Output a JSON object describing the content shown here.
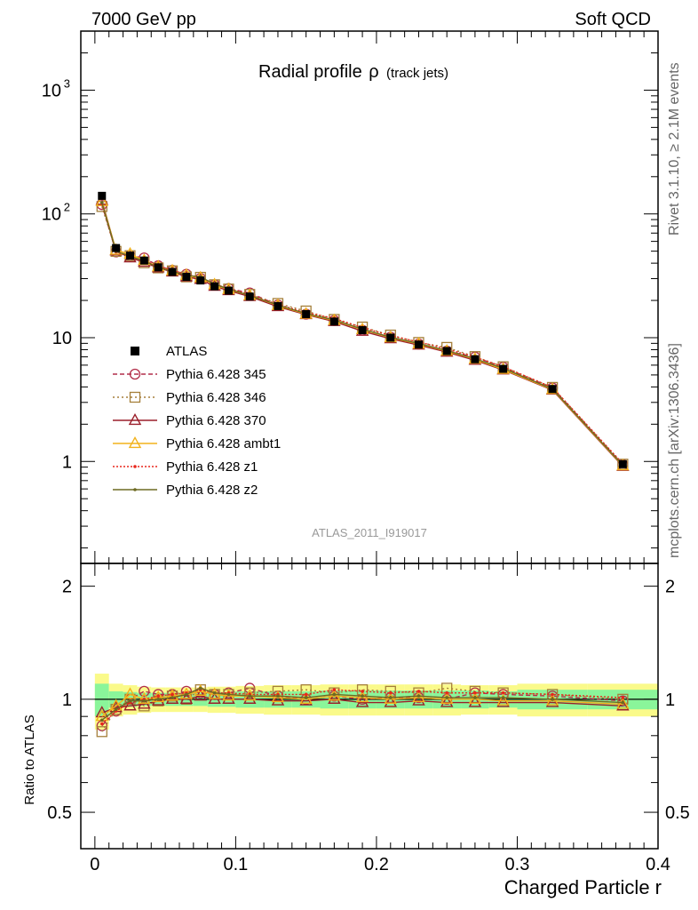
{
  "header": {
    "left": "7000 GeV pp",
    "right": "Soft QCD"
  },
  "side": {
    "rivet": "Rivet 3.1.10, ≥ 2.1M events",
    "url": "mcplots.cern.ch [arXiv:1306.3436]"
  },
  "chart_data": {
    "type": "line",
    "title_main": "Radial profile",
    "title_symbol": "ρ",
    "title_sub": "(track jets)",
    "analysis_id": "ATLAS_2011_I919017",
    "xlabel": "Charged Particle r",
    "ratio_ylabel": "Ratio to ATLAS",
    "xlim": [
      -0.01,
      0.4
    ],
    "ylim": [
      0.15,
      3000
    ],
    "yscale": "log",
    "ratio_ylim": [
      0.4,
      2.3
    ],
    "ratio_yscale": "log",
    "x_ticks": [
      {
        "v": 0,
        "label": "0"
      },
      {
        "v": 0.1,
        "label": "0.1"
      },
      {
        "v": 0.2,
        "label": "0.2"
      },
      {
        "v": 0.3,
        "label": "0.3"
      },
      {
        "v": 0.4,
        "label": "0.4"
      }
    ],
    "y_ticks": [
      {
        "v": 1,
        "label": "1"
      },
      {
        "v": 10,
        "label": "10"
      },
      {
        "v": 100,
        "label": "10",
        "sup": "2"
      },
      {
        "v": 1000,
        "label": "10",
        "sup": "3"
      }
    ],
    "ratio_ticks": [
      {
        "v": 0.5,
        "label": "0.5"
      },
      {
        "v": 1,
        "label": "1"
      },
      {
        "v": 2,
        "label": "2"
      }
    ],
    "x": [
      0.005,
      0.015,
      0.025,
      0.035,
      0.045,
      0.055,
      0.065,
      0.075,
      0.085,
      0.095,
      0.11,
      0.13,
      0.15,
      0.17,
      0.19,
      0.21,
      0.23,
      0.25,
      0.27,
      0.29,
      0.325,
      0.375
    ],
    "x_edges": [
      0,
      0.01,
      0.02,
      0.03,
      0.04,
      0.05,
      0.06,
      0.07,
      0.08,
      0.09,
      0.1,
      0.12,
      0.14,
      0.16,
      0.18,
      0.2,
      0.22,
      0.24,
      0.26,
      0.28,
      0.3,
      0.35,
      0.4
    ],
    "data": {
      "name": "ATLAS",
      "values": [
        140,
        53,
        46,
        42,
        37,
        34,
        31,
        29,
        26,
        24,
        21.5,
        18,
        15.5,
        13.5,
        11.5,
        10,
        8.8,
        7.8,
        6.7,
        5.6,
        3.85,
        0.95
      ]
    },
    "band_yellow_hw": [
      0.17,
      0.1,
      0.09,
      0.08,
      0.075,
      0.075,
      0.075,
      0.075,
      0.08,
      0.08,
      0.085,
      0.09,
      0.09,
      0.095,
      0.095,
      0.095,
      0.095,
      0.095,
      0.09,
      0.09,
      0.1,
      0.1
    ],
    "band_green_hw": [
      0.1,
      0.05,
      0.045,
      0.04,
      0.04,
      0.04,
      0.04,
      0.04,
      0.045,
      0.045,
      0.05,
      0.05,
      0.05,
      0.055,
      0.055,
      0.055,
      0.055,
      0.055,
      0.055,
      0.05,
      0.06,
      0.06
    ],
    "series": [
      {
        "name": "Pythia 6.428 345",
        "color": "#b22e4a",
        "marker": "circle-open",
        "dash": "5,3",
        "ratio": [
          0.85,
          0.93,
          1.0,
          1.05,
          1.03,
          1.03,
          1.05,
          1.04,
          1.03,
          1.04,
          1.07,
          1.02,
          1.0,
          1.02,
          1.0,
          1.01,
          1.01,
          1.0,
          1.04,
          1.03,
          1.02,
          0.99
        ]
      },
      {
        "name": "Pythia 6.428 346",
        "color": "#a57f3a",
        "marker": "square-open",
        "dash": "2,3",
        "ratio": [
          0.82,
          0.94,
          1.0,
          0.96,
          0.99,
          1.02,
          1.0,
          1.06,
          1.03,
          1.03,
          1.04,
          1.05,
          1.06,
          1.04,
          1.06,
          1.05,
          1.04,
          1.07,
          1.05,
          1.04,
          1.03,
          1.0
        ]
      },
      {
        "name": "Pythia 6.428 370",
        "color": "#9a1f2a",
        "marker": "triangle-open",
        "dash": "",
        "ratio": [
          0.92,
          0.95,
          0.96,
          0.97,
          0.99,
          1.0,
          1.0,
          1.02,
          1.0,
          1.0,
          1.0,
          0.99,
          0.99,
          1.0,
          0.98,
          0.98,
          0.99,
          0.98,
          0.98,
          0.98,
          0.98,
          0.96
        ]
      },
      {
        "name": "Pythia 6.428 ambt1",
        "color": "#f2b21c",
        "marker": "triangle-open",
        "dash": "",
        "ratio": [
          0.9,
          0.96,
          1.03,
          1.0,
          1.01,
          1.02,
          1.03,
          1.05,
          1.03,
          1.02,
          1.02,
          1.01,
          1.0,
          1.02,
          1.01,
          1.0,
          1.01,
          1.0,
          1.0,
          0.99,
          0.99,
          0.97
        ]
      },
      {
        "name": "Pythia 6.428 z1",
        "color": "#e8271c",
        "marker": "dot",
        "dash": "2,2",
        "ratio": [
          0.86,
          0.93,
          0.98,
          1.0,
          1.02,
          1.03,
          1.04,
          1.06,
          1.04,
          1.04,
          1.03,
          1.03,
          1.03,
          1.06,
          1.05,
          1.04,
          1.05,
          1.04,
          1.04,
          1.04,
          1.03,
          1.01
        ]
      },
      {
        "name": "Pythia 6.428 z2",
        "color": "#6d6a22",
        "marker": "dot",
        "dash": "",
        "ratio": [
          0.88,
          0.94,
          0.99,
          0.99,
          1.0,
          1.01,
          1.03,
          1.07,
          1.04,
          1.03,
          1.02,
          1.02,
          1.01,
          1.03,
          1.02,
          1.01,
          1.02,
          1.01,
          1.01,
          1.01,
          1.0,
          0.98
        ]
      }
    ]
  }
}
